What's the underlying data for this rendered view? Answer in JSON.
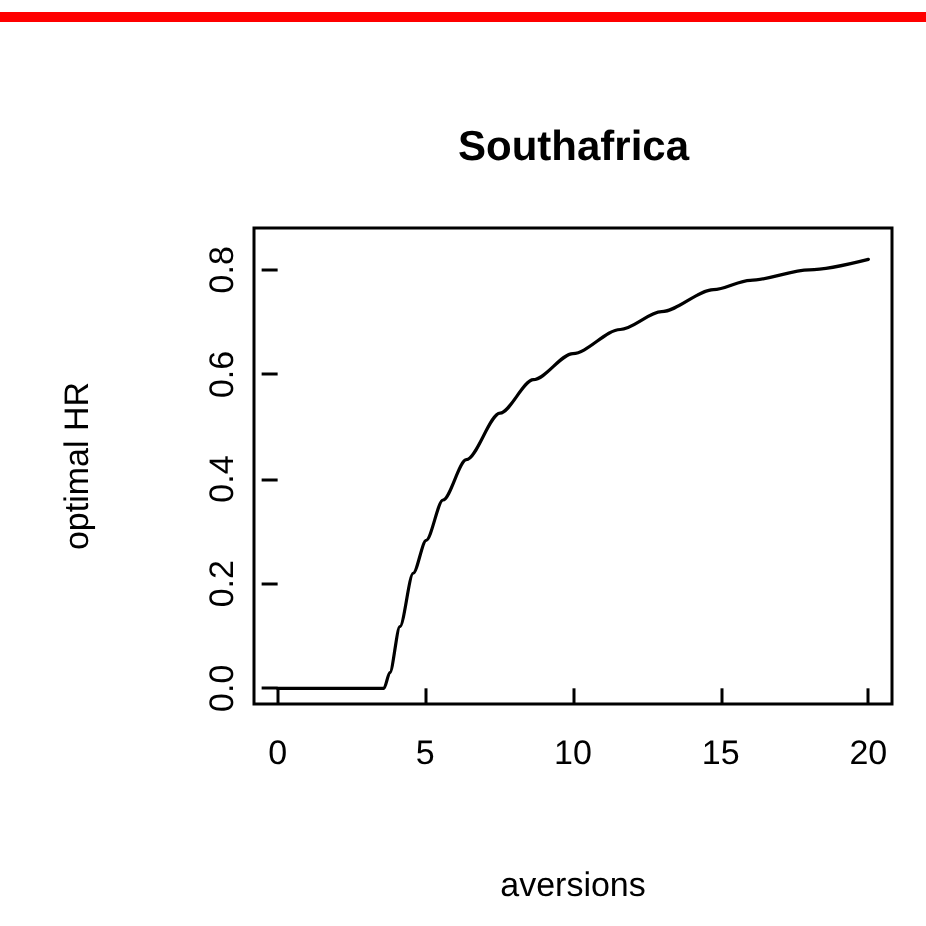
{
  "chart_data": {
    "type": "line",
    "title": "Southafrica",
    "xlabel": "aversions",
    "ylabel": "optimal HR",
    "xlim": [
      -0.8,
      20.8
    ],
    "ylim": [
      -0.03,
      0.88
    ],
    "xticks": [
      0,
      5,
      10,
      15,
      20
    ],
    "yticks": [
      {
        "value": 0,
        "label": "0.0"
      },
      {
        "value": 0.2,
        "label": "0.2"
      },
      {
        "value": 0.4,
        "label": "0.4"
      },
      {
        "value": 0.6,
        "label": "0.6"
      },
      {
        "value": 0.8,
        "label": "0.8"
      }
    ],
    "grid": false,
    "marker": "none",
    "line_style": "solid",
    "series": [
      {
        "color": "#000000",
        "x": [
          0,
          1,
          2,
          3,
          3.6,
          3.8,
          4.14,
          4.59,
          5.03,
          5.6,
          6.39,
          7.53,
          8.66,
          10,
          11.6,
          13,
          14.76,
          16,
          18,
          20
        ],
        "values": [
          0,
          0,
          0,
          0,
          0,
          0.03,
          0.118,
          0.22,
          0.283,
          0.36,
          0.437,
          0.526,
          0.59,
          0.64,
          0.686,
          0.72,
          0.762,
          0.78,
          0.8,
          0.82
        ]
      }
    ]
  }
}
